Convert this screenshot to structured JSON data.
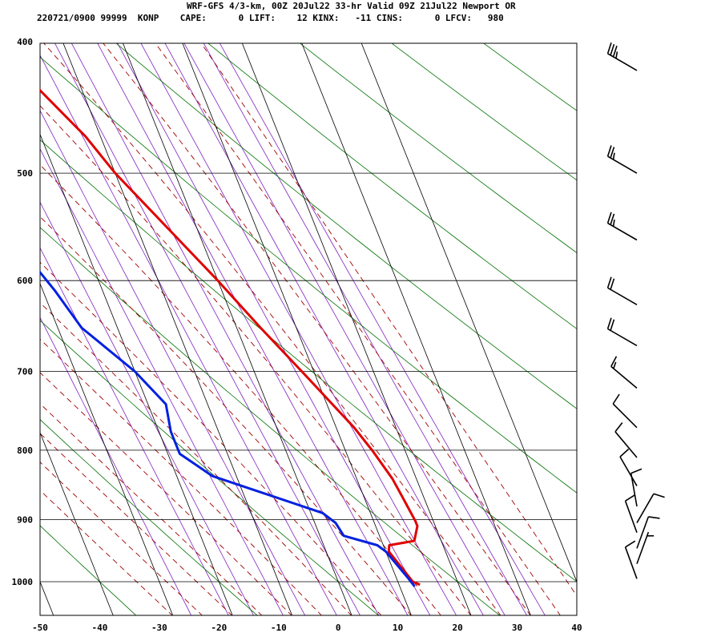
{
  "header": {
    "line1": "WRF-GFS 4/3-km, 00Z 20Jul22 33-hr Valid 09Z 21Jul22 Newport OR",
    "line2": "220721/0900 99999  KONP    CAPE:      0 LIFT:    12 KINX:   -11 CINS:      0 LFCV:   980"
  },
  "colors": {
    "temperature": "#e00000",
    "dewpoint": "#0020e0",
    "isotherm_grid": "#000000",
    "dry_adiabat": "#007000",
    "moist_adiabat": "#a00000",
    "mixing_ratio": "#8020c0",
    "barb": "#000000"
  },
  "chart_data": {
    "type": "line",
    "title": "",
    "xlabel": "",
    "ylabel": "",
    "xlim": [
      -50,
      40
    ],
    "ylim": [
      1050,
      400
    ],
    "y_scale": "log",
    "grid": true,
    "x_ticks": [
      -50,
      -40,
      -30,
      -20,
      -10,
      0,
      10,
      20,
      30,
      40
    ],
    "y_ticks": [
      400,
      500,
      600,
      700,
      800,
      900,
      1000
    ],
    "series": [
      {
        "key": "temperature",
        "points": [
          {
            "p": 1005,
            "t": 13.5
          },
          {
            "p": 1000,
            "t": 12.5
          },
          {
            "p": 950,
            "t": 10.5
          },
          {
            "p": 940,
            "t": 11.0
          },
          {
            "p": 933,
            "t": 15.5
          },
          {
            "p": 910,
            "t": 17.0
          },
          {
            "p": 902,
            "t": 17.0
          },
          {
            "p": 870,
            "t": 16.5
          },
          {
            "p": 840,
            "t": 16.0
          },
          {
            "p": 800,
            "t": 14.5
          },
          {
            "p": 770,
            "t": 13.0
          },
          {
            "p": 700,
            "t": 8.0
          },
          {
            "p": 650,
            "t": 4.0
          },
          {
            "p": 600,
            "t": 0.0
          },
          {
            "p": 500,
            "t": -10.0
          },
          {
            "p": 470,
            "t": -12.5
          },
          {
            "p": 420,
            "t": -19.0
          }
        ]
      },
      {
        "key": "dewpoint",
        "points": [
          {
            "p": 1008,
            "t": 12.5
          },
          {
            "p": 995,
            "t": 12.0
          },
          {
            "p": 950,
            "t": 10.0
          },
          {
            "p": 940,
            "t": 9.0
          },
          {
            "p": 925,
            "t": 4.0
          },
          {
            "p": 905,
            "t": 3.5
          },
          {
            "p": 890,
            "t": 2.0
          },
          {
            "p": 836,
            "t": -14.0
          },
          {
            "p": 805,
            "t": -18.0
          },
          {
            "p": 775,
            "t": -18.0
          },
          {
            "p": 740,
            "t": -17.0
          },
          {
            "p": 700,
            "t": -20.0
          },
          {
            "p": 650,
            "t": -26.0
          },
          {
            "p": 610,
            "t": -28.0
          },
          {
            "p": 540,
            "t": -33.0
          },
          {
            "p": 480,
            "t": -35.5
          },
          {
            "p": 470,
            "t": -35.5
          },
          {
            "p": 420,
            "t": -34.0
          }
        ]
      }
    ],
    "wind_barbs": [
      {
        "p": 420,
        "dir": 300,
        "kt": 35
      },
      {
        "p": 500,
        "dir": 300,
        "kt": 25
      },
      {
        "p": 560,
        "dir": 300,
        "kt": 25
      },
      {
        "p": 625,
        "dir": 300,
        "kt": 20
      },
      {
        "p": 670,
        "dir": 300,
        "kt": 20
      },
      {
        "p": 720,
        "dir": 310,
        "kt": 15
      },
      {
        "p": 770,
        "dir": 315,
        "kt": 10
      },
      {
        "p": 810,
        "dir": 320,
        "kt": 10
      },
      {
        "p": 850,
        "dir": 330,
        "kt": 10
      },
      {
        "p": 880,
        "dir": 350,
        "kt": 10
      },
      {
        "p": 905,
        "dir": 30,
        "kt": 10
      },
      {
        "p": 920,
        "dir": 340,
        "kt": 10
      },
      {
        "p": 945,
        "dir": 20,
        "kt": 10
      },
      {
        "p": 970,
        "dir": 20,
        "kt": 5
      },
      {
        "p": 995,
        "dir": 340,
        "kt": 10
      }
    ]
  }
}
